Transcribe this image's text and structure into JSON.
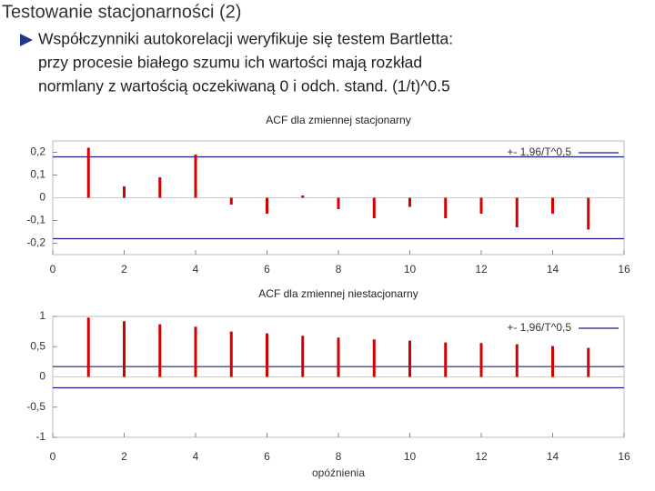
{
  "slide": {
    "title": "Testowanie stacjonarności (2)",
    "bullet_lines": [
      "Współczynniki autokorelacji weryfikuje się testem Bartletta:",
      "przy procesie białego szumu ich wartości mają rozkład",
      "normlany z wartością oczekiwaną 0 i odch. stand.  (1/t)^0.5"
    ]
  },
  "chart_data": [
    {
      "type": "stem",
      "title": "ACF dla zmiennej stacjonarny",
      "x": [
        1,
        2,
        3,
        4,
        5,
        6,
        7,
        8,
        9,
        10,
        11,
        12,
        13,
        14,
        15
      ],
      "values": [
        0.22,
        0.05,
        0.09,
        0.19,
        -0.03,
        -0.07,
        0.01,
        -0.05,
        -0.09,
        -0.04,
        -0.09,
        -0.07,
        -0.13,
        -0.07,
        -0.14
      ],
      "color": "#d40000",
      "bound": {
        "name": "+- 1,96/T^0,5",
        "values": [
          0.18,
          -0.18
        ],
        "color": "#1a1a8c"
      },
      "xlim": [
        0,
        16
      ],
      "xticks": [
        0,
        2,
        4,
        6,
        8,
        10,
        12,
        14,
        16
      ],
      "ylim": [
        -0.25,
        0.25
      ],
      "yticks": [
        {
          "value": 0.2,
          "label": "0,2"
        },
        {
          "value": 0.1,
          "label": "0,1"
        },
        0,
        {
          "value": -0.1,
          "label": "-0,1"
        },
        {
          "value": -0.2,
          "label": "-0,2"
        }
      ]
    },
    {
      "type": "stem",
      "title": "ACF dla zmiennej niestacjonarny",
      "x_label": "opóźnienia",
      "x": [
        1,
        2,
        3,
        4,
        5,
        6,
        7,
        8,
        9,
        10,
        11,
        12,
        13,
        14,
        15
      ],
      "values": [
        0.98,
        0.92,
        0.87,
        0.83,
        0.75,
        0.72,
        0.68,
        0.65,
        0.62,
        0.6,
        0.57,
        0.56,
        0.54,
        0.51,
        0.48
      ],
      "color": "#d40000",
      "bound": {
        "name": "+- 1,96/T^0,5",
        "values": [
          0.17,
          -0.18
        ],
        "color": "#1a1a8c"
      },
      "xlim": [
        0,
        16
      ],
      "xticks": [
        0,
        2,
        4,
        6,
        8,
        10,
        12,
        14,
        16
      ],
      "ylim": [
        -1,
        1
      ],
      "yticks": [
        1,
        {
          "value": 0.5,
          "label": "0,5"
        },
        0,
        {
          "value": -0.5,
          "label": "-0,5"
        },
        -1
      ]
    }
  ]
}
